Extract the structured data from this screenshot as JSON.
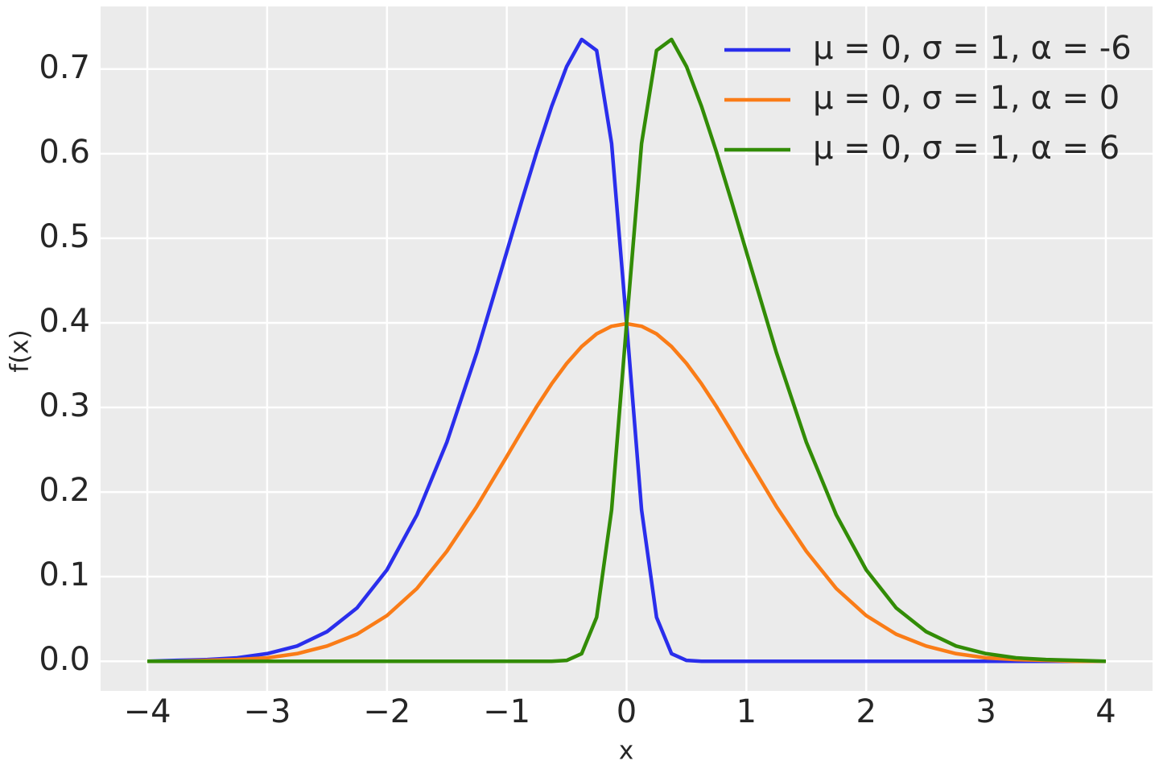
{
  "chart_data": {
    "type": "line",
    "x_label": "x",
    "y_label": "f(x)",
    "x": [
      -4,
      -3.75,
      -3.5,
      -3.25,
      -3,
      -2.75,
      -2.5,
      -2.25,
      -2,
      -1.75,
      -1.5,
      -1.25,
      -1,
      -0.875,
      -0.75,
      -0.625,
      -0.5,
      -0.375,
      -0.25,
      -0.125,
      0,
      0.125,
      0.25,
      0.375,
      0.5,
      0.625,
      0.75,
      0.875,
      1,
      1.25,
      1.5,
      1.75,
      2,
      2.25,
      2.5,
      2.75,
      3,
      3.25,
      3.5,
      3.75,
      4
    ],
    "series": [
      {
        "name": "μ = 0, σ = 1, α = -6",
        "color": "#2a2eec",
        "values": [
          0.0,
          0.001,
          0.002,
          0.004,
          0.009,
          0.018,
          0.035,
          0.063,
          0.108,
          0.173,
          0.259,
          0.365,
          0.484,
          0.544,
          0.602,
          0.656,
          0.703,
          0.735,
          0.722,
          0.612,
          0.399,
          0.179,
          0.052,
          0.009,
          0.001,
          0,
          0,
          0,
          0,
          0,
          0,
          0,
          0,
          0,
          0,
          0,
          0,
          0,
          0,
          0,
          0
        ]
      },
      {
        "name": "μ = 0, σ = 1, α = 0",
        "color": "#fa7c17",
        "values": [
          0.0,
          0.0,
          0.001,
          0.002,
          0.004,
          0.009,
          0.018,
          0.032,
          0.054,
          0.086,
          0.13,
          0.183,
          0.242,
          0.272,
          0.301,
          0.328,
          0.352,
          0.372,
          0.387,
          0.396,
          0.399,
          0.396,
          0.387,
          0.372,
          0.352,
          0.328,
          0.301,
          0.272,
          0.242,
          0.183,
          0.13,
          0.086,
          0.054,
          0.032,
          0.018,
          0.009,
          0.004,
          0.002,
          0.001,
          0.0,
          0.0
        ]
      },
      {
        "name": "μ = 0, σ = 1, α = 6",
        "color": "#328c06",
        "values": [
          0,
          0,
          0,
          0,
          0,
          0,
          0,
          0,
          0,
          0,
          0,
          0,
          0,
          0,
          0,
          0,
          0.001,
          0.009,
          0.052,
          0.179,
          0.399,
          0.612,
          0.722,
          0.735,
          0.703,
          0.656,
          0.602,
          0.544,
          0.484,
          0.365,
          0.259,
          0.173,
          0.108,
          0.063,
          0.035,
          0.018,
          0.009,
          0.004,
          0.002,
          0.001,
          0.0
        ]
      }
    ],
    "xlim": [
      -4.39,
      4.39
    ],
    "xticks": [
      {
        "value": -4,
        "label": "−4"
      },
      {
        "value": -3,
        "label": "−3"
      },
      {
        "value": -2,
        "label": "−2"
      },
      {
        "value": -1,
        "label": "−1"
      },
      0,
      1,
      2,
      3,
      4
    ],
    "ylim": [
      -0.035,
      0.774
    ],
    "yticks": [
      {
        "value": 0,
        "label": "0.0"
      },
      0.1,
      0.2,
      0.3,
      0.4,
      0.5,
      0.6,
      0.7
    ],
    "grid": true,
    "legend": "upper right"
  }
}
